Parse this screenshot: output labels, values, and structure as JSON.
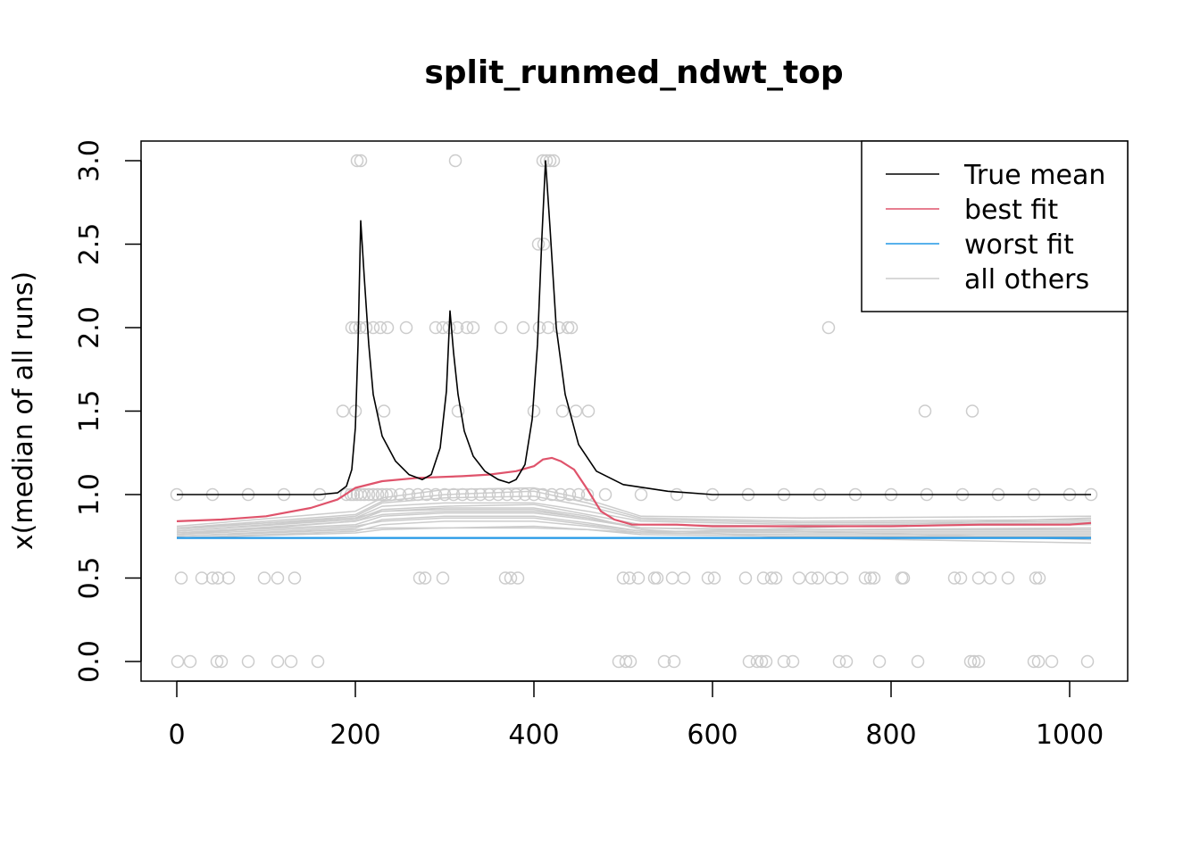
{
  "chart_data": {
    "type": "line",
    "title": "split_runmed_ndwt_top",
    "xlabel": "",
    "ylabel": "x(median of all runs)",
    "xlim": [
      0,
      1024
    ],
    "ylim": [
      0,
      3
    ],
    "x_ticks": [
      0,
      200,
      400,
      600,
      800,
      1000
    ],
    "x_tick_labels": [
      "0",
      "200",
      "400",
      "600",
      "800",
      "1000"
    ],
    "y_ticks": [
      0,
      0.5,
      1,
      1.5,
      2,
      2.5,
      3
    ],
    "y_tick_labels": [
      "0.0",
      "0.5",
      "1.0",
      "1.5",
      "2.0",
      "2.5",
      "3.0"
    ],
    "legend": {
      "position": "top-right",
      "entries": [
        {
          "label": "True mean",
          "color": "#000000"
        },
        {
          "label": "best fit",
          "color": "#DF536B"
        },
        {
          "label": "worst fit",
          "color": "#2297E6"
        },
        {
          "label": "all others",
          "color": "#CCCCCC"
        }
      ]
    },
    "series": [
      {
        "name": "True mean",
        "color": "#000000",
        "x": [
          0,
          160,
          180,
          190,
          196,
          200,
          203,
          206,
          210,
          215,
          220,
          230,
          245,
          260,
          275,
          285,
          295,
          302,
          306,
          310,
          315,
          322,
          332,
          345,
          360,
          372,
          380,
          390,
          398,
          404,
          409,
          413,
          418,
          425,
          435,
          450,
          470,
          500,
          550,
          600,
          1024
        ],
        "y": [
          1.0,
          1.0,
          1.01,
          1.05,
          1.15,
          1.4,
          1.9,
          2.64,
          2.3,
          1.9,
          1.6,
          1.35,
          1.2,
          1.12,
          1.09,
          1.12,
          1.28,
          1.62,
          2.1,
          1.85,
          1.6,
          1.38,
          1.23,
          1.14,
          1.09,
          1.07,
          1.09,
          1.18,
          1.45,
          1.9,
          2.55,
          3.0,
          2.6,
          2.0,
          1.6,
          1.3,
          1.14,
          1.06,
          1.02,
          1.0,
          1.0
        ]
      },
      {
        "name": "best fit",
        "color": "#DF536B",
        "x": [
          0,
          50,
          100,
          150,
          180,
          200,
          230,
          270,
          320,
          350,
          380,
          400,
          410,
          420,
          430,
          445,
          460,
          475,
          490,
          510,
          530,
          560,
          600,
          700,
          800,
          900,
          1000,
          1024
        ],
        "y": [
          0.84,
          0.85,
          0.87,
          0.92,
          0.97,
          1.04,
          1.08,
          1.1,
          1.11,
          1.12,
          1.14,
          1.17,
          1.21,
          1.22,
          1.2,
          1.15,
          1.03,
          0.9,
          0.85,
          0.82,
          0.82,
          0.82,
          0.81,
          0.81,
          0.81,
          0.82,
          0.82,
          0.83
        ]
      },
      {
        "name": "worst fit",
        "color": "#2297E6",
        "x": [
          0,
          1024
        ],
        "y": [
          0.74,
          0.74
        ]
      }
    ],
    "other_runs": [
      {
        "x": [
          0,
          200,
          230,
          300,
          400,
          460,
          520,
          700,
          1024
        ],
        "y": [
          0.78,
          0.86,
          0.93,
          0.95,
          0.95,
          0.9,
          0.84,
          0.82,
          0.83
        ]
      },
      {
        "x": [
          0,
          200,
          230,
          300,
          400,
          460,
          520,
          700,
          1024
        ],
        "y": [
          0.76,
          0.84,
          0.9,
          0.91,
          0.91,
          0.86,
          0.8,
          0.79,
          0.8
        ]
      },
      {
        "x": [
          0,
          200,
          230,
          300,
          400,
          460,
          520,
          700,
          1024
        ],
        "y": [
          0.8,
          0.88,
          0.96,
          1.0,
          1.02,
          0.95,
          0.86,
          0.84,
          0.85
        ]
      },
      {
        "x": [
          0,
          200,
          230,
          300,
          400,
          460,
          520,
          700,
          1024
        ],
        "y": [
          0.75,
          0.8,
          0.85,
          0.87,
          0.87,
          0.83,
          0.78,
          0.77,
          0.77
        ]
      },
      {
        "x": [
          0,
          200,
          230,
          300,
          400,
          460,
          520,
          700,
          1024
        ],
        "y": [
          0.77,
          0.82,
          0.87,
          0.89,
          0.89,
          0.85,
          0.8,
          0.79,
          0.79
        ]
      },
      {
        "x": [
          0,
          200,
          230,
          300,
          400,
          460,
          520,
          700,
          1024
        ],
        "y": [
          0.79,
          0.87,
          0.95,
          0.98,
          0.99,
          0.93,
          0.85,
          0.83,
          0.84
        ]
      },
      {
        "x": [
          0,
          200,
          230,
          300,
          400,
          460,
          520,
          700,
          1024
        ],
        "y": [
          0.74,
          0.78,
          0.82,
          0.84,
          0.84,
          0.81,
          0.77,
          0.76,
          0.76
        ]
      },
      {
        "x": [
          0,
          200,
          230,
          300,
          400,
          460,
          520,
          700,
          1024
        ],
        "y": [
          0.81,
          0.9,
          0.98,
          1.03,
          1.04,
          0.97,
          0.87,
          0.86,
          0.87
        ]
      },
      {
        "x": [
          0,
          200,
          230,
          300,
          400,
          460,
          520,
          700,
          1024
        ],
        "y": [
          0.76,
          0.81,
          0.84,
          0.86,
          0.86,
          0.82,
          0.78,
          0.78,
          0.78
        ]
      },
      {
        "x": [
          0,
          200,
          230,
          300,
          400,
          460,
          520,
          700,
          1024
        ],
        "y": [
          0.78,
          0.85,
          0.91,
          0.93,
          0.94,
          0.88,
          0.82,
          0.81,
          0.82
        ]
      },
      {
        "x": [
          0,
          200,
          230,
          300,
          400,
          460,
          520,
          700,
          1024
        ],
        "y": [
          0.75,
          0.79,
          0.8,
          0.8,
          0.8,
          0.79,
          0.76,
          0.75,
          0.75
        ]
      },
      {
        "x": [
          0,
          200,
          230,
          300,
          400,
          460,
          520,
          700,
          1024
        ],
        "y": [
          0.8,
          0.86,
          0.9,
          0.92,
          0.92,
          0.87,
          0.79,
          0.74,
          0.71
        ]
      },
      {
        "x": [
          0,
          200,
          230,
          300,
          400,
          460,
          520,
          700,
          1024
        ],
        "y": [
          0.74,
          0.77,
          0.79,
          0.8,
          0.81,
          0.79,
          0.77,
          0.8,
          0.86
        ]
      },
      {
        "x": [
          0,
          200,
          230,
          300,
          400,
          460,
          520,
          700,
          1024
        ],
        "y": [
          0.77,
          0.84,
          0.88,
          0.9,
          0.9,
          0.86,
          0.8,
          0.78,
          0.73
        ]
      }
    ],
    "points": {
      "color": "#CCCCCC",
      "x": [
        0,
        40,
        80,
        120,
        160,
        190,
        195,
        198,
        202,
        206,
        210,
        215,
        220,
        225,
        230,
        235,
        240,
        250,
        260,
        270,
        280,
        290,
        300,
        310,
        320,
        330,
        340,
        350,
        360,
        370,
        380,
        390,
        400,
        410,
        420,
        430,
        440,
        450,
        460,
        480,
        520,
        560,
        600,
        640,
        680,
        720,
        760,
        800,
        840,
        880,
        920,
        960,
        1000,
        1024,
        5,
        28,
        40,
        46,
        58,
        98,
        113,
        132,
        272,
        278,
        298,
        368,
        374,
        382,
        500,
        507,
        517,
        535,
        538,
        555,
        568,
        595,
        602,
        637,
        657,
        666,
        671,
        697,
        711,
        718,
        733,
        745,
        771,
        777,
        781,
        812,
        814,
        871,
        878,
        898,
        911,
        931,
        962,
        966,
        1,
        15,
        45,
        50,
        80,
        113,
        128,
        158,
        495,
        503,
        508,
        546,
        557,
        641,
        650,
        655,
        660,
        680,
        690,
        742,
        750,
        787,
        830,
        889,
        893,
        898,
        960,
        965,
        980,
        1020,
        186,
        200,
        232,
        315,
        400,
        432,
        447,
        461,
        838,
        891,
        196,
        200,
        205,
        212,
        220,
        228,
        236,
        257,
        290,
        298,
        305,
        314,
        325,
        332,
        363,
        388,
        406,
        416,
        428,
        438,
        442,
        730,
        405,
        411,
        202,
        206,
        312,
        410,
        414,
        418,
        422
      ],
      "y": [
        1,
        1,
        1,
        1,
        1,
        1,
        1,
        1,
        1,
        1,
        1,
        1,
        1,
        1,
        1,
        1,
        1,
        1,
        1,
        1,
        1,
        1,
        1,
        1,
        1,
        1,
        1,
        1,
        1,
        1,
        1,
        1,
        1,
        1,
        1,
        1,
        1,
        1,
        1,
        1,
        1,
        1,
        1,
        1,
        1,
        1,
        1,
        1,
        1,
        1,
        1,
        1,
        1,
        1,
        0.5,
        0.5,
        0.5,
        0.5,
        0.5,
        0.5,
        0.5,
        0.5,
        0.5,
        0.5,
        0.5,
        0.5,
        0.5,
        0.5,
        0.5,
        0.5,
        0.5,
        0.5,
        0.5,
        0.5,
        0.5,
        0.5,
        0.5,
        0.5,
        0.5,
        0.5,
        0.5,
        0.5,
        0.5,
        0.5,
        0.5,
        0.5,
        0.5,
        0.5,
        0.5,
        0.5,
        0.5,
        0.5,
        0.5,
        0.5,
        0.5,
        0.5,
        0.5,
        0.5,
        0,
        0,
        0,
        0,
        0,
        0,
        0,
        0,
        0,
        0,
        0,
        0,
        0,
        0,
        0,
        0,
        0,
        0,
        0,
        0,
        0,
        0,
        0,
        0,
        0,
        0,
        0,
        0,
        0,
        0,
        1.5,
        1.5,
        1.5,
        1.5,
        1.5,
        1.5,
        1.5,
        1.5,
        1.5,
        1.5,
        2,
        2,
        2,
        2,
        2,
        2,
        2,
        2,
        2,
        2,
        2,
        2,
        2,
        2,
        2,
        2,
        2,
        2,
        2,
        2,
        2,
        2,
        2.5,
        2.5,
        3,
        3,
        3,
        3,
        3,
        3,
        3
      ]
    }
  }
}
